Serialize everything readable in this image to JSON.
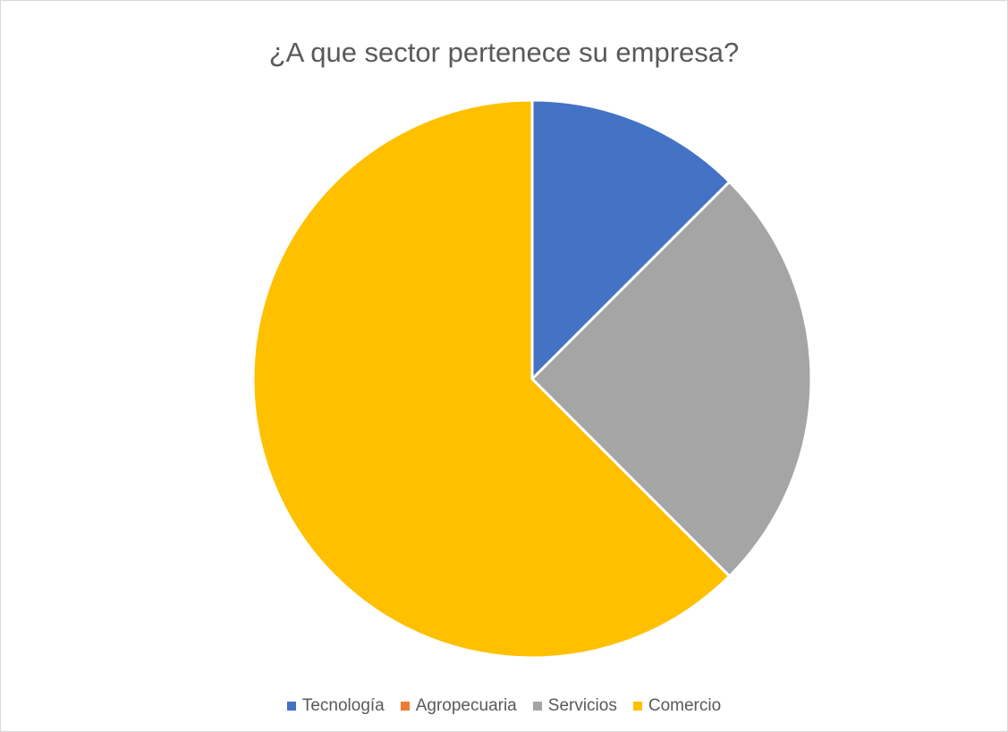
{
  "chart_data": {
    "type": "pie",
    "title": "¿A que sector pertenece su empresa?",
    "categories": [
      "Tecnología",
      "Agropecuaria",
      "Servicios",
      "Comercio"
    ],
    "values": [
      12.5,
      0,
      25,
      62.5
    ],
    "colors": [
      "#4472C4",
      "#ED7D31",
      "#A5A5A5",
      "#FFC000"
    ],
    "start_angle_deg": 0,
    "direction": "clockwise",
    "legend_position": "bottom"
  }
}
